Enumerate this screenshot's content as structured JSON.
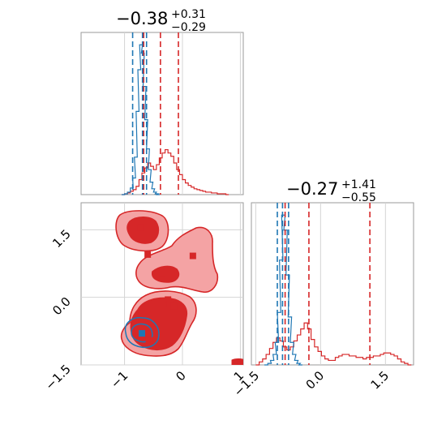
{
  "figure": {
    "colors": {
      "red": "#d62728",
      "blue": "#1f77b4",
      "red_fill_dark": "#d62728",
      "red_fill_light": "#f4a3a4",
      "frame": "#9a9a9a",
      "grid": "#d4d4d4"
    }
  },
  "chart_data": [
    {
      "type": "histogram",
      "panel": "top-left",
      "title": {
        "value": "−0.38",
        "upper": "+0.31",
        "lower": "−0.29"
      },
      "xlim": [
        -1.75,
        1.05
      ],
      "xticks": [
        -1,
        0,
        1
      ],
      "grid": true,
      "series": [
        {
          "color": "#d62728",
          "bins": [
            [
              -1.05,
              0
            ],
            [
              -1.0,
              1
            ],
            [
              -0.95,
              2
            ],
            [
              -0.9,
              4
            ],
            [
              -0.85,
              6
            ],
            [
              -0.8,
              10
            ],
            [
              -0.75,
              18
            ],
            [
              -0.7,
              26
            ],
            [
              -0.65,
              32
            ],
            [
              -0.6,
              38
            ],
            [
              -0.55,
              34
            ],
            [
              -0.5,
              30
            ],
            [
              -0.45,
              36
            ],
            [
              -0.4,
              44
            ],
            [
              -0.35,
              50
            ],
            [
              -0.3,
              54
            ],
            [
              -0.25,
              50
            ],
            [
              -0.2,
              46
            ],
            [
              -0.15,
              38
            ],
            [
              -0.1,
              30
            ],
            [
              -0.05,
              24
            ],
            [
              0.0,
              18
            ],
            [
              0.05,
              14
            ],
            [
              0.1,
              11
            ],
            [
              0.15,
              9
            ],
            [
              0.2,
              7
            ],
            [
              0.25,
              6
            ],
            [
              0.3,
              5
            ],
            [
              0.35,
              4
            ],
            [
              0.4,
              3
            ],
            [
              0.45,
              3
            ],
            [
              0.5,
              2
            ],
            [
              0.55,
              2
            ],
            [
              0.6,
              1
            ],
            [
              0.65,
              1
            ],
            [
              0.7,
              1
            ],
            [
              0.75,
              0
            ]
          ],
          "quantiles": [
            -0.67,
            -0.38,
            -0.07
          ]
        },
        {
          "color": "#1f77b4",
          "bins": [
            [
              -1.05,
              0
            ],
            [
              -1.0,
              1
            ],
            [
              -0.95,
              3
            ],
            [
              -0.9,
              8
            ],
            [
              -0.86,
              20
            ],
            [
              -0.83,
              45
            ],
            [
              -0.8,
              100
            ],
            [
              -0.77,
              150
            ],
            [
              -0.74,
              180
            ],
            [
              -0.71,
              170
            ],
            [
              -0.68,
              130
            ],
            [
              -0.65,
              90
            ],
            [
              -0.62,
              55
            ],
            [
              -0.59,
              30
            ],
            [
              -0.56,
              15
            ],
            [
              -0.53,
              7
            ],
            [
              -0.5,
              3
            ],
            [
              -0.47,
              1
            ],
            [
              -0.44,
              0
            ]
          ],
          "quantiles": [
            -0.86,
            -0.69,
            -0.62
          ]
        }
      ]
    },
    {
      "type": "contour2d",
      "panel": "bottom-left",
      "xlim": [
        -1.75,
        1.05
      ],
      "ylim": [
        -1.5,
        2.1
      ],
      "xticks": [
        -1,
        0,
        1
      ],
      "yticks": [
        -1.5,
        0.0,
        1.5
      ],
      "grid": true,
      "red_samples": [
        [
          -0.72,
          1.55
        ],
        [
          -0.6,
          0.95
        ],
        [
          0.18,
          0.92
        ],
        [
          -0.35,
          0.55
        ],
        [
          -0.25,
          -0.05
        ],
        [
          -0.22,
          -0.15
        ],
        [
          -0.15,
          -0.2
        ],
        [
          -0.6,
          -0.8
        ],
        [
          -0.58,
          -0.95
        ]
      ],
      "red_edge_points": [
        [
          0.98,
          -1.45
        ],
        [
          1.0,
          -1.48
        ]
      ],
      "blue_samples": [
        [
          -0.7,
          -0.8
        ]
      ]
    },
    {
      "type": "histogram",
      "panel": "bottom-right",
      "title": {
        "value": "−0.27",
        "upper": "+1.41",
        "lower": "−0.55"
      },
      "xlim": [
        -1.6,
        2.15
      ],
      "xticks": [
        -1.5,
        0.0,
        1.5
      ],
      "grid": true,
      "series": [
        {
          "color": "#d62728",
          "bins": [
            [
              -1.5,
              0
            ],
            [
              -1.42,
              2
            ],
            [
              -1.34,
              4
            ],
            [
              -1.26,
              7
            ],
            [
              -1.18,
              11
            ],
            [
              -1.1,
              15
            ],
            [
              -1.02,
              18
            ],
            [
              -0.94,
              16
            ],
            [
              -0.86,
              12
            ],
            [
              -0.78,
              10
            ],
            [
              -0.7,
              12
            ],
            [
              -0.62,
              16
            ],
            [
              -0.54,
              20
            ],
            [
              -0.46,
              24
            ],
            [
              -0.38,
              28
            ],
            [
              -0.3,
              24
            ],
            [
              -0.22,
              17
            ],
            [
              -0.14,
              12
            ],
            [
              -0.06,
              9
            ],
            [
              0.02,
              6
            ],
            [
              0.1,
              4
            ],
            [
              0.18,
              3
            ],
            [
              0.26,
              3
            ],
            [
              0.34,
              5
            ],
            [
              0.42,
              6
            ],
            [
              0.5,
              7
            ],
            [
              0.58,
              7
            ],
            [
              0.66,
              6
            ],
            [
              0.74,
              6
            ],
            [
              0.82,
              5
            ],
            [
              0.9,
              5
            ],
            [
              0.98,
              4
            ],
            [
              1.06,
              5
            ],
            [
              1.14,
              5
            ],
            [
              1.22,
              6
            ],
            [
              1.3,
              6
            ],
            [
              1.38,
              7
            ],
            [
              1.46,
              8
            ],
            [
              1.54,
              8
            ],
            [
              1.62,
              7
            ],
            [
              1.7,
              6
            ],
            [
              1.78,
              4
            ],
            [
              1.86,
              2
            ],
            [
              1.94,
              1
            ],
            [
              2.02,
              0
            ]
          ],
          "quantiles": [
            -0.82,
            -0.27,
            1.14
          ]
        },
        {
          "color": "#1f77b4",
          "bins": [
            [
              -1.3,
              0
            ],
            [
              -1.22,
              1
            ],
            [
              -1.16,
              3
            ],
            [
              -1.1,
              7
            ],
            [
              -1.05,
              15
            ],
            [
              -1.0,
              35
            ],
            [
              -0.95,
              70
            ],
            [
              -0.9,
              100
            ],
            [
              -0.85,
              90
            ],
            [
              -0.8,
              60
            ],
            [
              -0.75,
              32
            ],
            [
              -0.7,
              15
            ],
            [
              -0.65,
              7
            ],
            [
              -0.6,
              3
            ],
            [
              -0.55,
              1
            ],
            [
              -0.5,
              0
            ]
          ],
          "quantiles": [
            -1.0,
            -0.88,
            -0.74
          ]
        }
      ]
    }
  ]
}
